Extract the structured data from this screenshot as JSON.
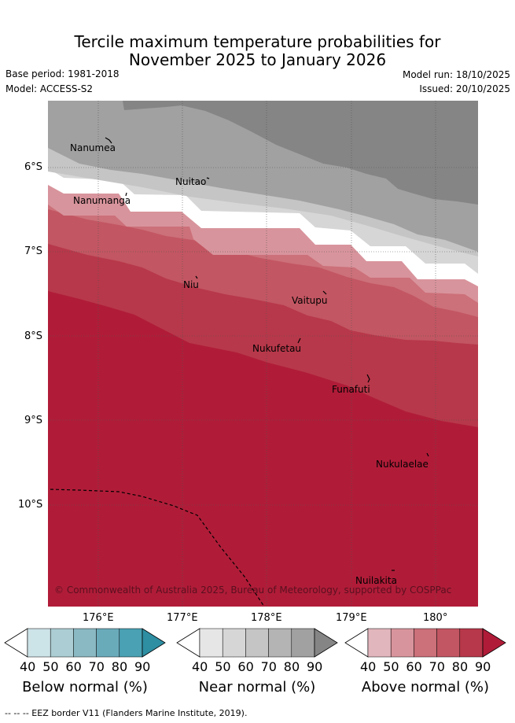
{
  "title": {
    "line1": "Tercile maximum temperature probabilities for",
    "line2": "November 2025 to January 2026"
  },
  "meta": {
    "base_period": "Base period: 1981-2018",
    "model": "Model: ACCESS-S2",
    "model_run": "Model run: 18/10/2025",
    "issued": "Issued: 20/10/2025"
  },
  "map": {
    "lon_labels": [
      "176°E",
      "177°E",
      "178°E",
      "179°E",
      "180°"
    ],
    "lat_labels": [
      "6°S",
      "7°S",
      "8°S",
      "9°S",
      "10°S"
    ],
    "places": [
      "Nanumea",
      "Nuitao",
      "Nanumanga",
      "Niu",
      "Vaitupu",
      "Nukufetau",
      "Funafuti",
      "Nukulaelae",
      "Nuilakita"
    ],
    "copyright": "© Commonwealth of Australia 2025, Bureau of Meteorology, supported by COSPPac"
  },
  "colorbars": [
    {
      "title": "Below normal (%)",
      "ticks": [
        "40",
        "50",
        "60",
        "70",
        "80",
        "90"
      ],
      "colors": [
        "#ffffff",
        "#cce3e8",
        "#abcdd3",
        "#8ab8c3",
        "#6aabba",
        "#49a1b3",
        "#2e8ea2"
      ]
    },
    {
      "title": "Near normal (%)",
      "ticks": [
        "40",
        "50",
        "60",
        "70",
        "80",
        "90"
      ],
      "colors": [
        "#ffffff",
        "#e6e6e6",
        "#d6d6d6",
        "#c5c5c5",
        "#b4b4b4",
        "#a1a1a1",
        "#858585"
      ]
    },
    {
      "title": "Above normal (%)",
      "ticks": [
        "40",
        "50",
        "60",
        "70",
        "80",
        "90"
      ],
      "colors": [
        "#ffffff",
        "#e2b6bd",
        "#d8949c",
        "#cc7079",
        "#c25662",
        "#b7384a",
        "#b01c38"
      ]
    }
  ],
  "footer": "-- -- -- EEZ border V11 (Flanders Marine Institute, 2019)."
}
